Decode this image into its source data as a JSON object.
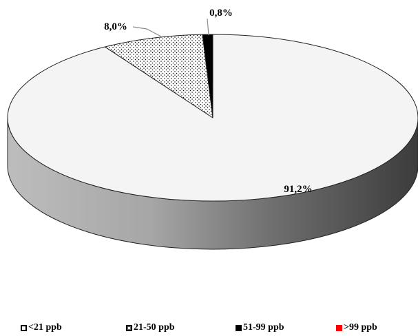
{
  "chart_data": {
    "type": "pie",
    "title": "",
    "categories": [
      "<21 ppb",
      "21-50 ppb",
      "51-99 ppb",
      ">99 ppb"
    ],
    "values": [
      91.2,
      8.0,
      0.8,
      0.0
    ],
    "data_labels": [
      "91,2%",
      "8,0%",
      "0,8%",
      ""
    ],
    "legend_position": "bottom",
    "style": "3d",
    "colors": {
      "<21 ppb": "#f4f4f4",
      "21-50 ppb": "dotted",
      "51-99 ppb": "#000000",
      ">99 ppb": "#ff0000"
    }
  },
  "legend": [
    {
      "label": "<21 ppb",
      "swatch": "hollow"
    },
    {
      "label": "21-50 ppb",
      "swatch": "dotted"
    },
    {
      "label": "51-99 ppb",
      "swatch": "solid-black"
    },
    {
      "label": ">99 ppb",
      "swatch": "solid-red"
    }
  ]
}
